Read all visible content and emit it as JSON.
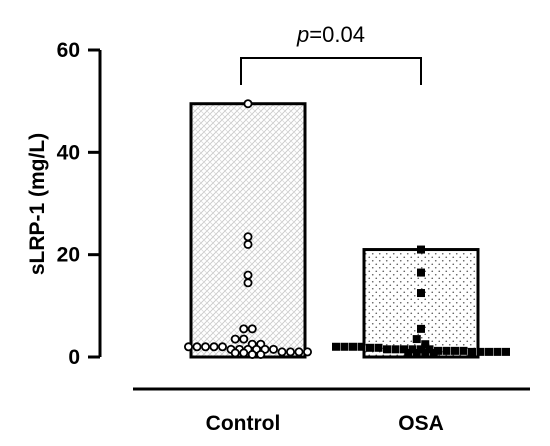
{
  "chart_data": {
    "type": "bar",
    "title": "",
    "xlabel": "",
    "ylabel": "sLRP-1 (mg/L)",
    "ylim": [
      0,
      60
    ],
    "yticks": [
      "0",
      "20",
      "40",
      "60"
    ],
    "yticks_values": [
      0,
      20,
      40,
      60
    ],
    "categories": [
      "Control",
      "OSA"
    ],
    "values": [
      49.5,
      21
    ],
    "colors": {
      "bar_stroke": "#000000",
      "control_pattern": "#c8c8c8",
      "osa_pattern": "#555555",
      "points": "#000000"
    },
    "fill_patterns": [
      "hatch",
      "dots"
    ],
    "point_markers": [
      "circle-open",
      "square-filled"
    ],
    "points": [
      {
        "category": "Control",
        "values": [
          49.5,
          23.5,
          22,
          16,
          14.5,
          5.5,
          5.5,
          3.5,
          3.5,
          2.5,
          2.5,
          2,
          2,
          2,
          2,
          2,
          1.5,
          1.5,
          1.5,
          1.5,
          1.5,
          1.5,
          1,
          1,
          1,
          1,
          0.8,
          0.8,
          0.5,
          0.5
        ]
      },
      {
        "category": "OSA",
        "values": [
          21,
          16.5,
          12.5,
          5.5,
          3.5,
          2.5,
          2,
          2,
          2,
          2,
          1.8,
          1.8,
          1.5,
          1.5,
          1.5,
          1.5,
          1.5,
          1.5,
          1.2,
          1.2,
          1.2,
          1.2,
          1,
          1,
          1,
          1,
          1,
          0.8,
          0.8,
          0.8,
          0.8
        ]
      }
    ],
    "annotation": {
      "p_symbol": "p",
      "p_value": "=0.04"
    }
  }
}
